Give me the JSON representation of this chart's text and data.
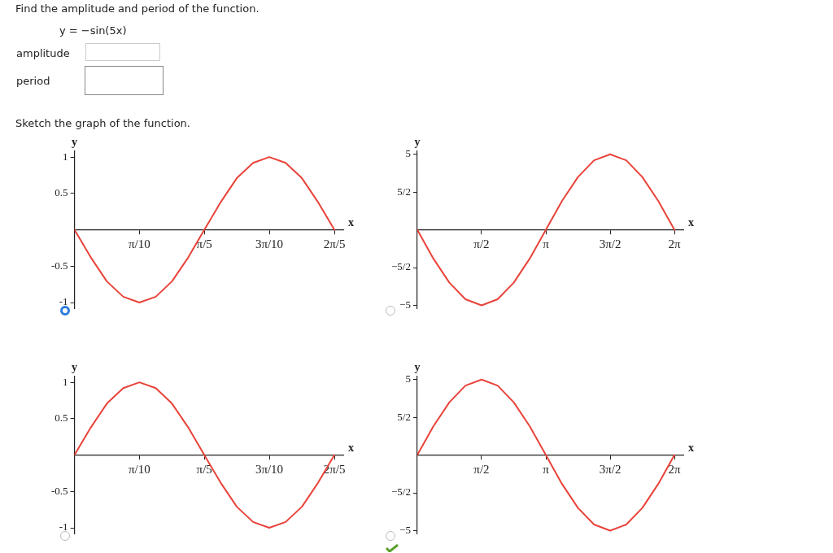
{
  "chart_data": [
    {
      "type": "other",
      "title": "Find the amplitude and period of the function.",
      "annotations": [
        "y = −sin(5x)",
        "amplitude",
        "period",
        "Sketch the graph of the function."
      ]
    },
    {
      "type": "line",
      "xlabel": "x",
      "ylabel": "y",
      "x": [
        0,
        0.079,
        0.157,
        0.236,
        0.314,
        0.393,
        0.471,
        0.55,
        0.628,
        0.707,
        0.785,
        0.864,
        0.942,
        1.021,
        1.1,
        1.178,
        1.257
      ],
      "values": [
        0,
        -0.38,
        -0.71,
        -0.92,
        -1,
        -0.92,
        -0.71,
        -0.38,
        0,
        0.38,
        0.71,
        0.92,
        1,
        0.92,
        0.71,
        0.38,
        0
      ],
      "color": "#e8433a",
      "xlim": [
        0,
        1.3
      ],
      "ylim": [
        -1.08,
        1.08
      ],
      "xticks": [
        {
          "value": 0.314,
          "label": "π/10"
        },
        {
          "value": 0.628,
          "label": "π/5"
        },
        {
          "value": 0.942,
          "label": "3π/10"
        },
        {
          "value": 1.257,
          "label": "2π/5"
        }
      ],
      "yticks": [
        -1,
        -0.5,
        0.5,
        1
      ],
      "marker": "none",
      "line_style": "solid"
    },
    {
      "type": "line",
      "xlabel": "x",
      "ylabel": "y",
      "x": [
        0,
        0.393,
        0.785,
        1.178,
        1.571,
        1.963,
        2.356,
        2.749,
        3.142,
        3.534,
        3.927,
        4.32,
        4.712,
        5.105,
        5.498,
        5.89,
        6.283
      ],
      "values": [
        0,
        -1.9,
        -3.5,
        -4.6,
        -5,
        -4.6,
        -3.5,
        -1.9,
        0,
        1.9,
        3.5,
        4.6,
        5,
        4.6,
        3.5,
        1.9,
        0
      ],
      "color": "#e8433a",
      "xlim": [
        0,
        6.5
      ],
      "ylim": [
        -5.2,
        5.2
      ],
      "xticks": [
        {
          "value": 1.571,
          "label": "π/2"
        },
        {
          "value": 3.142,
          "label": "π"
        },
        {
          "value": 4.712,
          "label": "3π/2"
        },
        {
          "value": 6.283,
          "label": "2π"
        }
      ],
      "yticks": [
        {
          "value": -5,
          "label": "−5"
        },
        {
          "value": -2.5,
          "label": "−5/2"
        },
        {
          "value": 2.5,
          "label": "5/2"
        },
        5
      ],
      "marker": "none",
      "line_style": "solid"
    },
    {
      "type": "line",
      "xlabel": "x",
      "ylabel": "y",
      "x": [
        0,
        0.079,
        0.157,
        0.236,
        0.314,
        0.393,
        0.471,
        0.55,
        0.628,
        0.707,
        0.785,
        0.864,
        0.942,
        1.021,
        1.1,
        1.178,
        1.257
      ],
      "values": [
        0,
        0.38,
        0.71,
        0.92,
        1,
        0.92,
        0.71,
        0.38,
        0,
        -0.38,
        -0.71,
        -0.92,
        -1,
        -0.92,
        -0.71,
        -0.38,
        0
      ],
      "color": "#e8433a",
      "xlim": [
        0,
        1.3
      ],
      "ylim": [
        -1.08,
        1.08
      ],
      "xticks": [
        {
          "value": 0.314,
          "label": "π/10"
        },
        {
          "value": 0.628,
          "label": "π/5"
        },
        {
          "value": 0.942,
          "label": "3π/10"
        },
        {
          "value": 1.257,
          "label": "2π/5"
        }
      ],
      "yticks": [
        -1,
        -0.5,
        0.5,
        1
      ],
      "marker": "none",
      "line_style": "solid"
    },
    {
      "type": "line",
      "xlabel": "x",
      "ylabel": "y",
      "x": [
        0,
        0.393,
        0.785,
        1.178,
        1.571,
        1.963,
        2.356,
        2.749,
        3.142,
        3.534,
        3.927,
        4.32,
        4.712,
        5.105,
        5.498,
        5.89,
        6.283
      ],
      "values": [
        0,
        1.9,
        3.5,
        4.6,
        5,
        4.6,
        3.5,
        1.9,
        0,
        -1.9,
        -3.5,
        -4.6,
        -5,
        -4.6,
        -3.5,
        -1.9,
        0
      ],
      "color": "#e8433a",
      "xlim": [
        0,
        6.5
      ],
      "ylim": [
        -5.2,
        5.2
      ],
      "xticks": [
        {
          "value": 1.571,
          "label": "π/2"
        },
        {
          "value": 3.142,
          "label": "π"
        },
        {
          "value": 4.712,
          "label": "3π/2"
        },
        {
          "value": 6.283,
          "label": "2π"
        }
      ],
      "yticks": [
        {
          "value": -5,
          "label": "−5"
        },
        {
          "value": -2.5,
          "label": "−5/2"
        },
        {
          "value": 2.5,
          "label": "5/2"
        },
        5
      ],
      "marker": "none",
      "line_style": "solid"
    }
  ]
}
